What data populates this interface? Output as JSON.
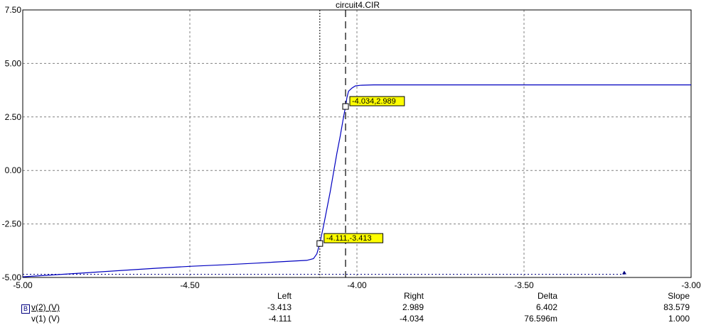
{
  "title": "circuit4.CIR",
  "chart_data": {
    "type": "line",
    "title": "circuit4.CIR",
    "xlim": [
      -5.0,
      -3.0
    ],
    "ylim": [
      -5.0,
      7.5
    ],
    "x_ticks": [
      "-5.00",
      "-4.50",
      "-4.00",
      "-3.50",
      "-3.00"
    ],
    "x_tick_values": [
      -5.0,
      -4.5,
      -4.0,
      -3.5,
      -3.0
    ],
    "y_ticks": [
      "7.50",
      "5.00",
      "2.50",
      "0.00",
      "-2.50",
      "-5.00"
    ],
    "y_tick_values": [
      7.5,
      5.0,
      2.5,
      0.0,
      -2.5,
      -5.0
    ],
    "grid": true,
    "series": [
      {
        "name": "v(2) (V)",
        "color": "#0000c0",
        "x": [
          -5.0,
          -4.9,
          -4.8,
          -4.7,
          -4.6,
          -4.5,
          -4.4,
          -4.3,
          -4.2,
          -4.15,
          -4.13,
          -4.12,
          -4.111,
          -4.1,
          -4.08,
          -4.06,
          -4.05,
          -4.04,
          -4.034,
          -4.03,
          -4.025,
          -4.015,
          -4.005,
          -3.99,
          -3.95,
          -3.9,
          -3.8,
          -3.7,
          -3.6,
          -3.5,
          -3.4,
          -3.3,
          -3.2,
          -3.1,
          -3.0
        ],
        "y": [
          -4.97,
          -4.87,
          -4.77,
          -4.67,
          -4.57,
          -4.48,
          -4.41,
          -4.33,
          -4.24,
          -4.2,
          -4.12,
          -3.9,
          -3.413,
          -2.6,
          -1.0,
          0.8,
          1.6,
          2.5,
          2.989,
          3.4,
          3.7,
          3.85,
          3.95,
          3.98,
          4.0,
          4.0,
          4.0,
          4.0,
          4.0,
          4.0,
          4.0,
          4.0,
          4.0,
          4.0,
          4.0
        ]
      }
    ],
    "cursors": {
      "left": {
        "x": -4.111,
        "y": -3.413,
        "label": "-4.111,-3.413"
      },
      "right": {
        "x": -4.034,
        "y": 2.989,
        "label": "-4.034,2.989"
      }
    },
    "tracer": {
      "y": -4.85,
      "marker_x": -3.2
    },
    "accent_color": "#ffff00"
  },
  "readout": {
    "headers": {
      "left": "Left",
      "right": "Right",
      "delta": "Delta",
      "slope": "Slope"
    },
    "rows": [
      {
        "box": "B",
        "name": "v(2) (V)",
        "left": "-3.413",
        "right": "2.989",
        "delta": "6.402",
        "slope": "83.579"
      },
      {
        "box": "",
        "name": "v(1) (V)",
        "left": "-4.111",
        "right": "-4.034",
        "delta": "76.596m",
        "slope": "1.000"
      }
    ]
  }
}
